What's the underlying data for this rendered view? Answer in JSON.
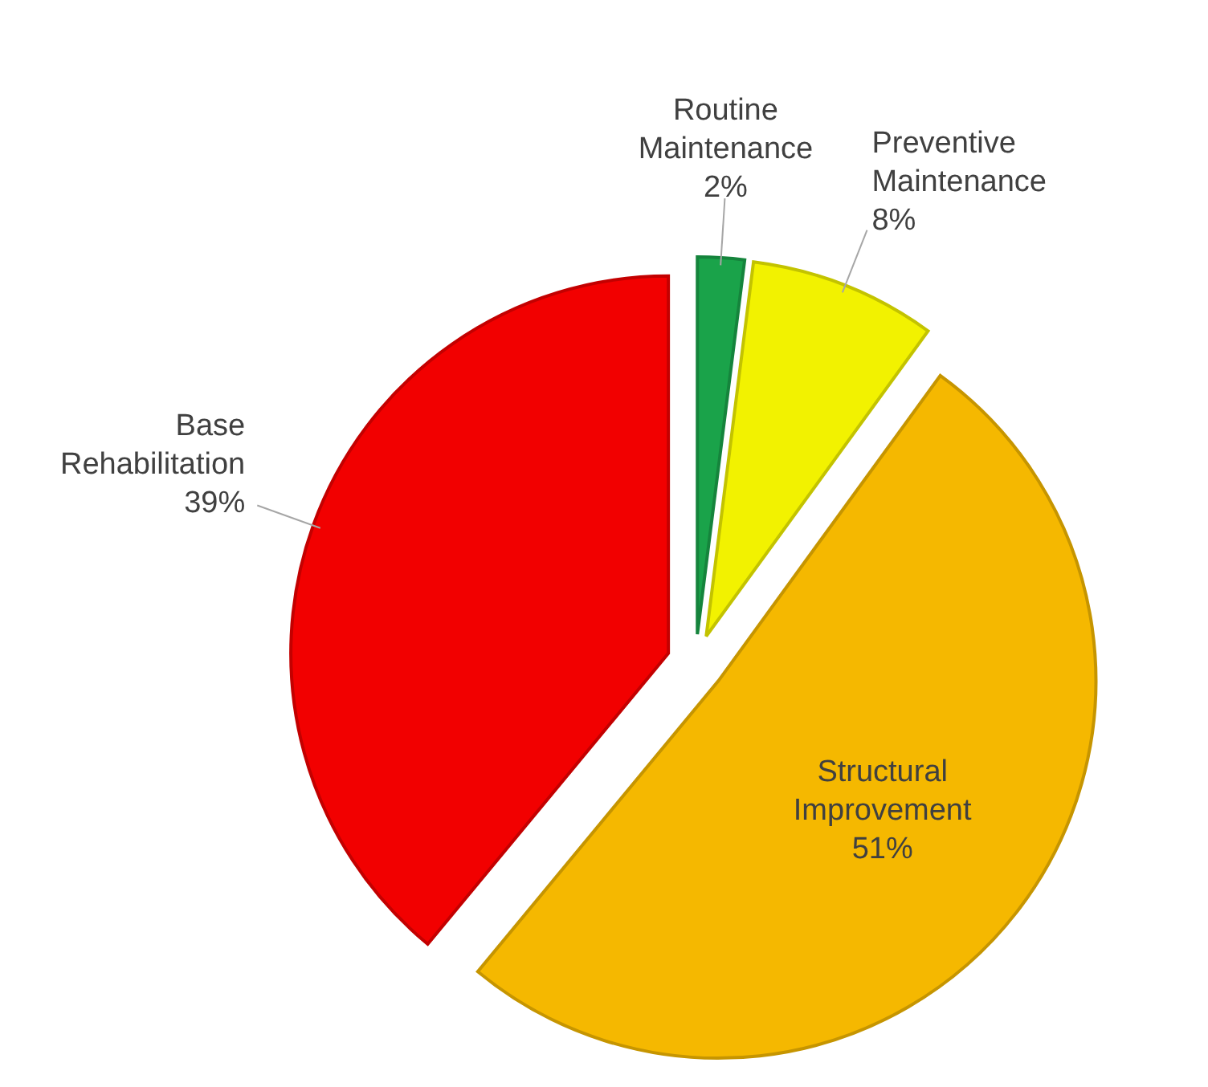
{
  "chart_data": {
    "type": "pie",
    "categories": [
      "Routine Maintenance",
      "Preventive Maintenance",
      "Structural Improvement",
      "Base Rehabilitation"
    ],
    "values": [
      2,
      8,
      51,
      39
    ],
    "value_labels": [
      "2%",
      "8%",
      "51%",
      "39%"
    ],
    "colors": [
      "#1aa34a",
      "#f2f200",
      "#f5b800",
      "#f20000"
    ]
  }
}
